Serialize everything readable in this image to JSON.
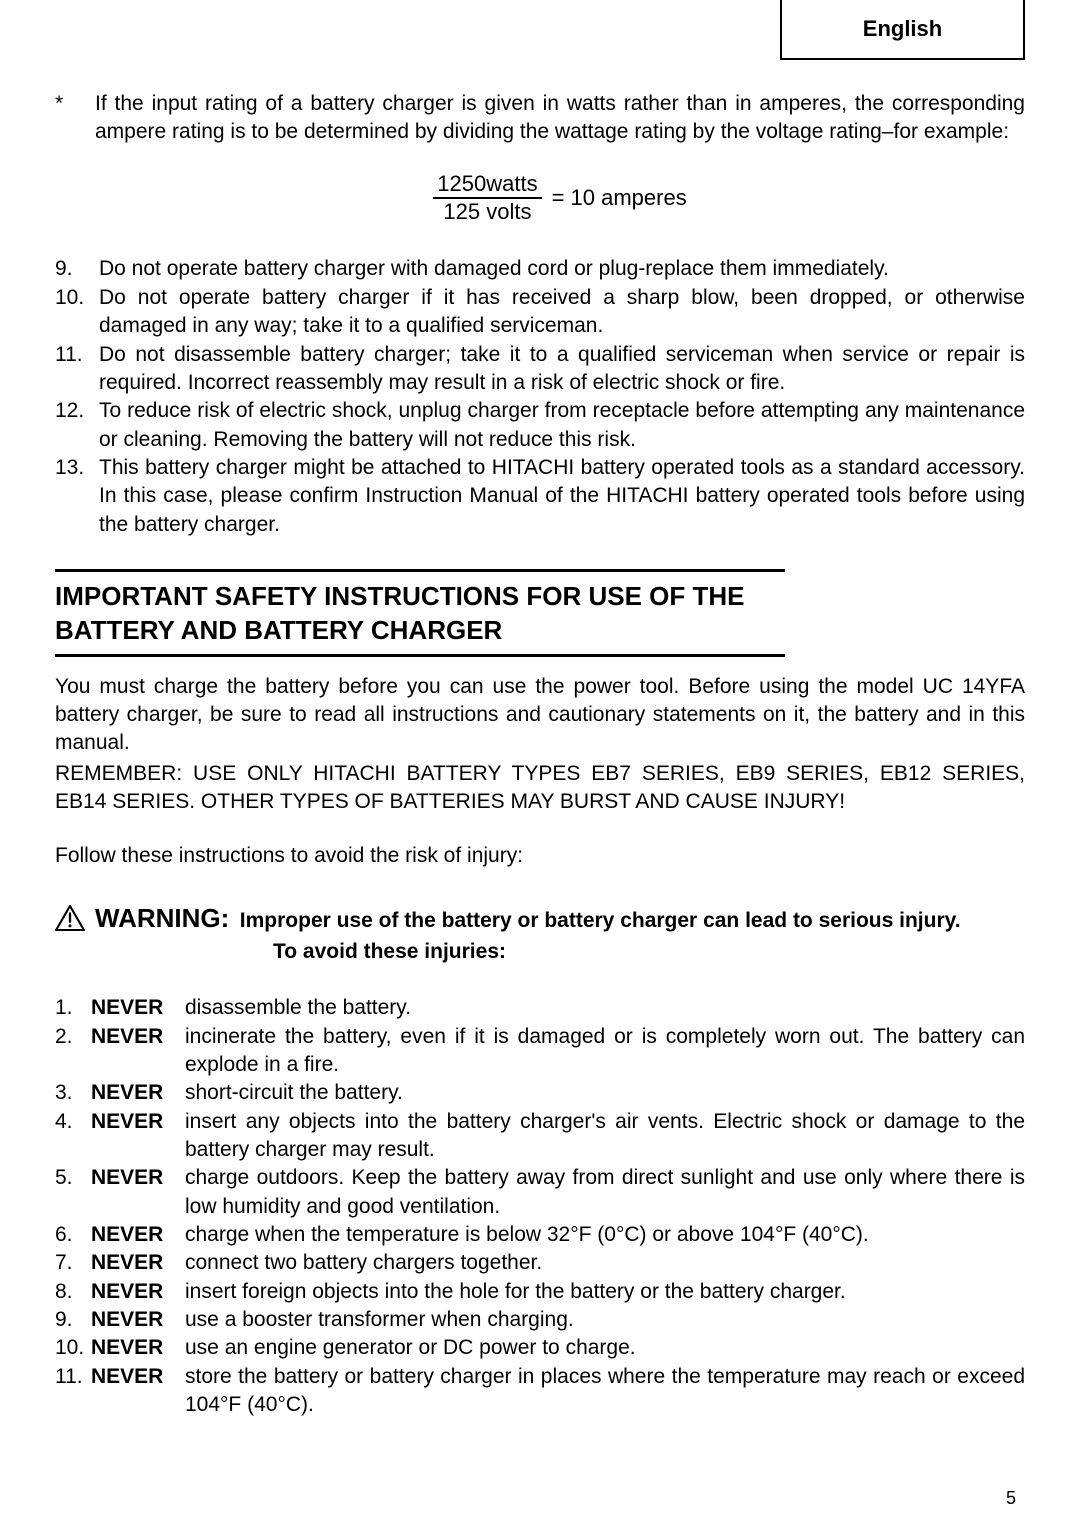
{
  "language_tab": "English",
  "asterisk": {
    "mark": "*",
    "text": "If the input rating of a battery charger is given in watts rather than in amperes, the corresponding ampere rating is to be determined by dividing the wattage rating by the voltage rating–for example:"
  },
  "equation": {
    "numerator": "1250watts",
    "denominator": "125 volts",
    "result": "= 10 amperes"
  },
  "numbered": [
    {
      "n": "9.",
      "t": "Do not operate battery charger with damaged cord or plug-replace them immediately."
    },
    {
      "n": "10.",
      "t": "Do not operate battery charger if it has received a sharp blow, been dropped, or otherwise damaged in any way; take it to a qualified serviceman."
    },
    {
      "n": "11.",
      "t": "Do not disassemble battery charger; take it to a qualified serviceman when service or repair is required. Incorrect reassembly may result in a risk of electric shock or fire."
    },
    {
      "n": "12.",
      "t": "To reduce risk of electric shock, unplug charger from receptacle before attempting any maintenance or cleaning. Removing the battery will not reduce this risk."
    },
    {
      "n": "13.",
      "t": "This battery charger might be attached to HITACHI battery operated tools as a standard accessory. In this case, please confirm Instruction Manual of the HITACHI battery operated tools before using the battery charger."
    }
  ],
  "heading": "IMPORTANT SAFETY INSTRUCTIONS FOR USE OF THE BATTERY AND BATTERY CHARGER",
  "para1": "You must charge the battery before you can use the power tool. Before using the model UC 14YFA battery charger, be sure to read all instructions and cautionary statements on it, the battery and in this manual.",
  "para2": "REMEMBER:  USE ONLY HITACHI BATTERY TYPES EB7 SERIES, EB9 SERIES, EB12 SERIES, EB14 SERIES. OTHER TYPES OF BATTERIES MAY BURST AND CAUSE INJURY!",
  "para3": "Follow these instructions to avoid the risk of injury:",
  "warning": {
    "label": "WARNING:",
    "line1": "Improper use of the battery or battery charger can lead to serious injury.",
    "line2": "To avoid these injuries:"
  },
  "never_keyword": "NEVER",
  "never": [
    {
      "n": "1.",
      "t": "disassemble the battery."
    },
    {
      "n": "2.",
      "t": "incinerate the battery, even if it is damaged or is completely worn out. The battery can explode in a fire."
    },
    {
      "n": "3.",
      "t": "short-circuit the battery."
    },
    {
      "n": "4.",
      "t": "insert any objects into the battery charger's air vents. Electric shock or damage to the battery charger may result."
    },
    {
      "n": "5.",
      "t": "charge outdoors. Keep the battery away from direct sunlight and use only where there is low humidity and good ventilation."
    },
    {
      "n": "6.",
      "t": "charge when the temperature is below 32°F (0°C) or above 104°F (40°C)."
    },
    {
      "n": "7.",
      "t": "connect two battery chargers together."
    },
    {
      "n": "8.",
      "t": "insert foreign objects into the hole for the battery or the battery charger."
    },
    {
      "n": "9.",
      "t": "use a booster transformer when charging."
    },
    {
      "n": "10.",
      "t": "use an engine generator or DC power to charge."
    },
    {
      "n": "11.",
      "t": "store the battery or battery charger in places where the temperature may reach or exceed 104°F (40°C)."
    }
  ],
  "page_number": "5"
}
